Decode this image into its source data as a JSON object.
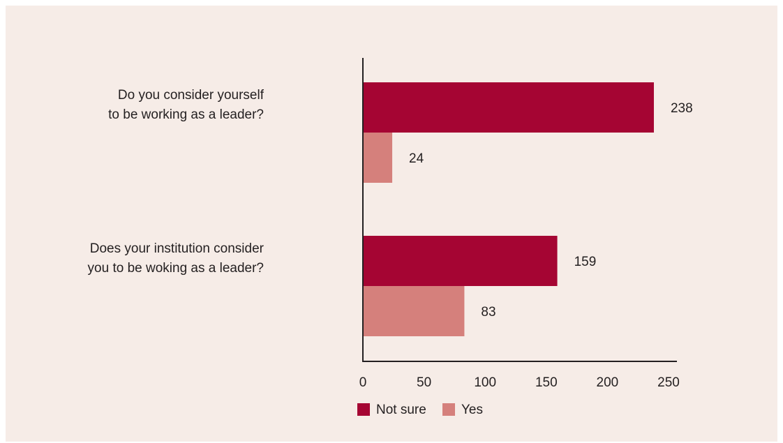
{
  "chart_data": {
    "type": "bar",
    "orientation": "horizontal",
    "title": "",
    "xlabel": "",
    "ylabel": "",
    "categories": [
      [
        "Do you consider yourself",
        "to be working as a leader?"
      ],
      [
        "Does your institution consider",
        "you to be woking as a leader?"
      ]
    ],
    "series": [
      {
        "name": "Not sure",
        "color": "#a50533",
        "values": [
          238,
          159
        ]
      },
      {
        "name": "Yes",
        "color": "#d5807c",
        "values": [
          24,
          83
        ]
      }
    ],
    "xlim": [
      0,
      250
    ],
    "xticks": [
      0,
      50,
      100,
      150,
      200,
      250
    ],
    "grid": false,
    "legend_position": "bottom-center"
  },
  "colors": {
    "background": "#f6ece7",
    "axis": "#231f20",
    "text": "#231f20"
  }
}
